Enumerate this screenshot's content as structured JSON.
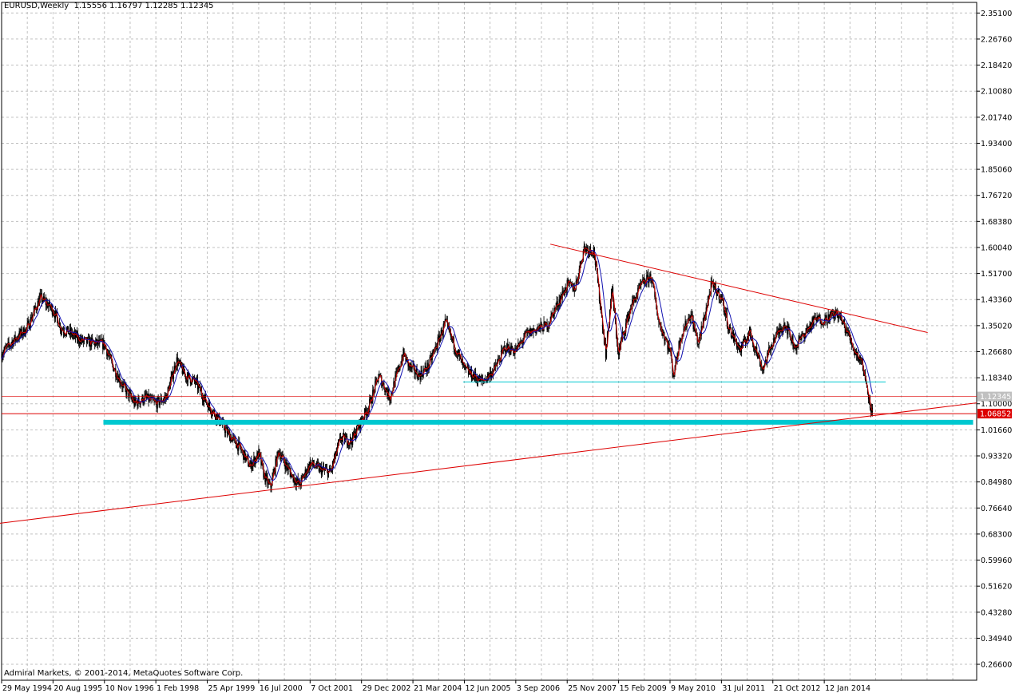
{
  "header": {
    "symbol": "EURUSD,Weekly",
    "ohlc": "1.15556 1.16797 1.12285 1.12345"
  },
  "footer": {
    "copyright": "Admiral Markets, © 2001-2014, MetaQuotes Software Corp."
  },
  "colors": {
    "background": "#ffffff",
    "grid": "#c0c0c0",
    "candle": "#000000",
    "ma_fast": "#cc0000",
    "ma_slow": "#1010b0",
    "trendline": "#dd0000",
    "support": "#00c8d0",
    "price_label_bid": "#c0c0c0",
    "price_label_line": "#dd0000"
  },
  "chart_data": {
    "type": "line",
    "title": "EURUSD,Weekly",
    "ylim": [
      0.215,
      2.385
    ],
    "grid": true,
    "y_ticks": [
      "2.35100",
      "2.26760",
      "2.18420",
      "2.10080",
      "2.01740",
      "1.93400",
      "1.85060",
      "1.76720",
      "1.68380",
      "1.60040",
      "1.51700",
      "1.43360",
      "1.35020",
      "1.26680",
      "1.18340",
      "1.10000",
      "1.01660",
      "0.93320",
      "0.84980",
      "0.76640",
      "0.68300",
      "0.59960",
      "0.51620",
      "0.43280",
      "0.34940",
      "0.26600"
    ],
    "x_ticks": [
      "29 May 1994",
      "20 Aug 1995",
      "10 Nov 1996",
      "1 Feb 1998",
      "25 Apr 1999",
      "16 Jul 2000",
      "7 Oct 2001",
      "29 Dec 2002",
      "21 Mar 2004",
      "12 Jun 2005",
      "3 Sep 2006",
      "25 Nov 2007",
      "15 Feb 2009",
      "9 May 2010",
      "31 Jul 2011",
      "21 Oct 2012",
      "12 Jan 2014"
    ],
    "x_range": [
      "1994-05-29",
      "2017-09-01"
    ],
    "current_price": {
      "label": "1.12345",
      "value": 1.12345
    },
    "marked_price": {
      "label": "1.06852",
      "value": 1.06852
    },
    "series": [
      {
        "name": "EURUSD",
        "x": [
          "1994-05-29",
          "1994-09-01",
          "1995-01-01",
          "1995-05-01",
          "1995-08-20",
          "1995-11-01",
          "1996-01-01",
          "1996-05-01",
          "1996-11-10",
          "1997-01-10",
          "1997-04-15",
          "1997-08-01",
          "1997-11-01",
          "1998-02-01",
          "1998-05-01",
          "1998-08-01",
          "1998-10-15",
          "1999-01-10",
          "1999-04-25",
          "1999-08-01",
          "1999-11-01",
          "2000-02-01",
          "2000-05-01",
          "2000-07-16",
          "2000-09-01",
          "2000-10-25",
          "2001-01-05",
          "2001-03-01",
          "2001-05-01",
          "2001-07-05",
          "2001-10-07",
          "2002-01-01",
          "2002-04-01",
          "2002-07-01",
          "2002-10-01",
          "2002-12-29",
          "2003-03-01",
          "2003-05-27",
          "2003-09-01",
          "2003-12-29",
          "2004-02-17",
          "2004-05-14",
          "2004-08-01",
          "2004-12-28",
          "2005-03-01",
          "2005-06-12",
          "2005-11-15",
          "2006-03-01",
          "2006-06-01",
          "2006-09-03",
          "2006-12-01",
          "2007-03-01",
          "2007-06-01",
          "2007-09-01",
          "2007-11-25",
          "2008-02-01",
          "2008-04-20",
          "2008-07-15",
          "2008-09-01",
          "2008-10-27",
          "2008-12-18",
          "2009-02-15",
          "2009-03-01",
          "2009-06-01",
          "2009-09-01",
          "2009-11-25",
          "2010-02-01",
          "2010-05-09",
          "2010-06-07",
          "2010-08-05",
          "2010-11-04",
          "2011-01-10",
          "2011-05-04",
          "2011-07-31",
          "2011-10-04",
          "2012-01-13",
          "2012-04-01",
          "2012-07-24",
          "2012-10-21",
          "2013-02-01",
          "2013-05-01",
          "2013-08-01",
          "2013-10-25",
          "2014-01-12",
          "2014-05-08",
          "2014-08-01",
          "2014-10-01",
          "2014-12-01",
          "2015-02-01",
          "2015-03-13"
        ],
        "values": [
          1.26,
          1.3,
          1.34,
          1.44,
          1.4,
          1.34,
          1.33,
          1.3,
          1.29,
          1.23,
          1.16,
          1.1,
          1.12,
          1.1,
          1.12,
          1.24,
          1.19,
          1.17,
          1.1,
          1.05,
          1.0,
          0.96,
          0.9,
          0.94,
          0.87,
          0.83,
          0.95,
          0.91,
          0.87,
          0.84,
          0.91,
          0.89,
          0.88,
          0.99,
          0.98,
          1.05,
          1.09,
          1.19,
          1.12,
          1.26,
          1.22,
          1.19,
          1.22,
          1.36,
          1.3,
          1.21,
          1.17,
          1.21,
          1.28,
          1.27,
          1.32,
          1.34,
          1.35,
          1.42,
          1.48,
          1.47,
          1.6,
          1.59,
          1.44,
          1.26,
          1.47,
          1.25,
          1.29,
          1.41,
          1.48,
          1.51,
          1.36,
          1.27,
          1.19,
          1.31,
          1.39,
          1.29,
          1.48,
          1.44,
          1.34,
          1.27,
          1.33,
          1.21,
          1.3,
          1.36,
          1.28,
          1.33,
          1.37,
          1.37,
          1.39,
          1.33,
          1.27,
          1.24,
          1.13,
          1.05
        ]
      }
    ],
    "annotations": {
      "upper_trendline": [
        [
          "2007-07-01",
          1.611
        ],
        [
          "2016-07-01",
          1.328
        ]
      ],
      "lower_trendline": [
        [
          "1994-05-01",
          0.717
        ],
        [
          "2017-09-01",
          1.103
        ]
      ],
      "support_thin": [
        [
          "2005-06-01",
          1.17
        ],
        [
          "2015-07-01",
          1.17
        ]
      ],
      "support_thick": [
        [
          "1996-11-01",
          1.041
        ],
        [
          "2017-08-01",
          1.041
        ]
      ],
      "hline_current": 1.12345,
      "hline_marked": 1.06852
    }
  }
}
